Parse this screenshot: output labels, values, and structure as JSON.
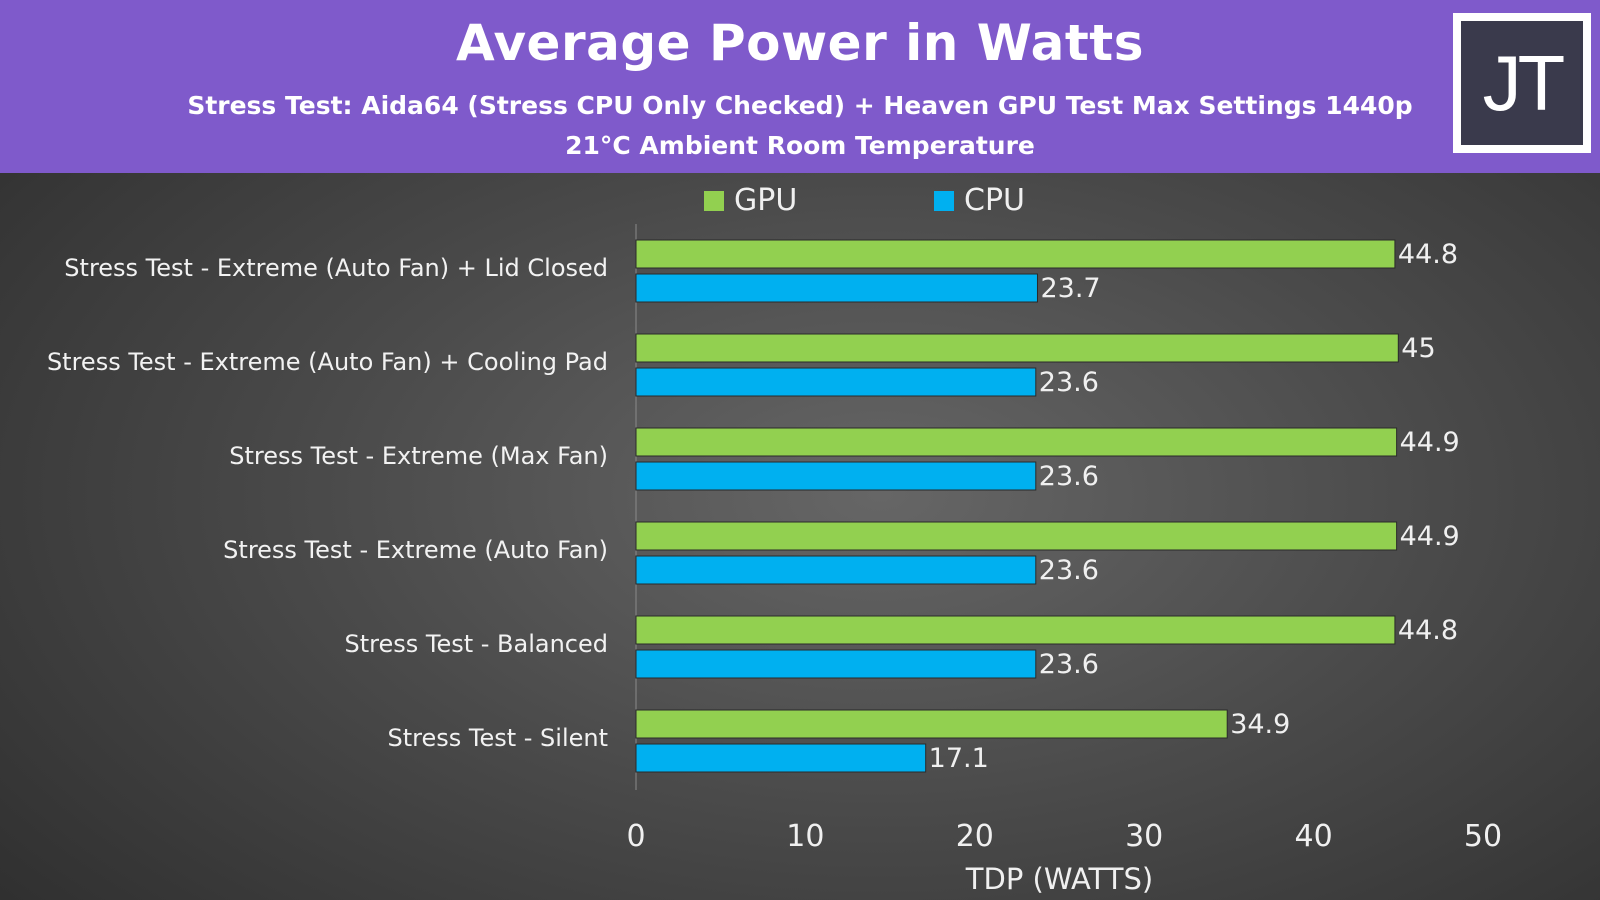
{
  "header": {
    "title": "Average Power in Watts",
    "subtitle_line1": "Stress Test: Aida64 (Stress CPU Only Checked) + Heaven GPU Test Max Settings 1440p",
    "subtitle_line2": "21°C Ambient Room Temperature",
    "logo_text": "JT"
  },
  "colors": {
    "header_bg": "#7f5acb",
    "gpu": "#92d050",
    "cpu": "#00b0f0"
  },
  "legend": {
    "gpu_label": "GPU",
    "cpu_label": "CPU"
  },
  "chart_data": {
    "type": "bar",
    "orientation": "horizontal",
    "categories": [
      "Stress Test - Extreme (Auto Fan) + Lid Closed",
      "Stress Test - Extreme (Auto Fan) + Cooling Pad",
      "Stress Test - Extreme (Max Fan)",
      "Stress Test - Extreme (Auto Fan)",
      "Stress Test - Balanced",
      "Stress Test - Silent"
    ],
    "series": [
      {
        "name": "GPU",
        "values": [
          44.8,
          45,
          44.9,
          44.9,
          44.8,
          34.9
        ],
        "labels": [
          "44.8",
          "45",
          "44.9",
          "44.9",
          "44.8",
          "34.9"
        ]
      },
      {
        "name": "CPU",
        "values": [
          23.7,
          23.6,
          23.6,
          23.6,
          23.6,
          17.1
        ],
        "labels": [
          "23.7",
          "23.6",
          "23.6",
          "23.6",
          "23.6",
          "17.1"
        ]
      }
    ],
    "xlabel": "TDP (WATTS)",
    "xlim": [
      0,
      50
    ],
    "xticks": [
      "0",
      "10",
      "20",
      "30",
      "40",
      "50"
    ],
    "grid": false,
    "legend_position": "top"
  }
}
